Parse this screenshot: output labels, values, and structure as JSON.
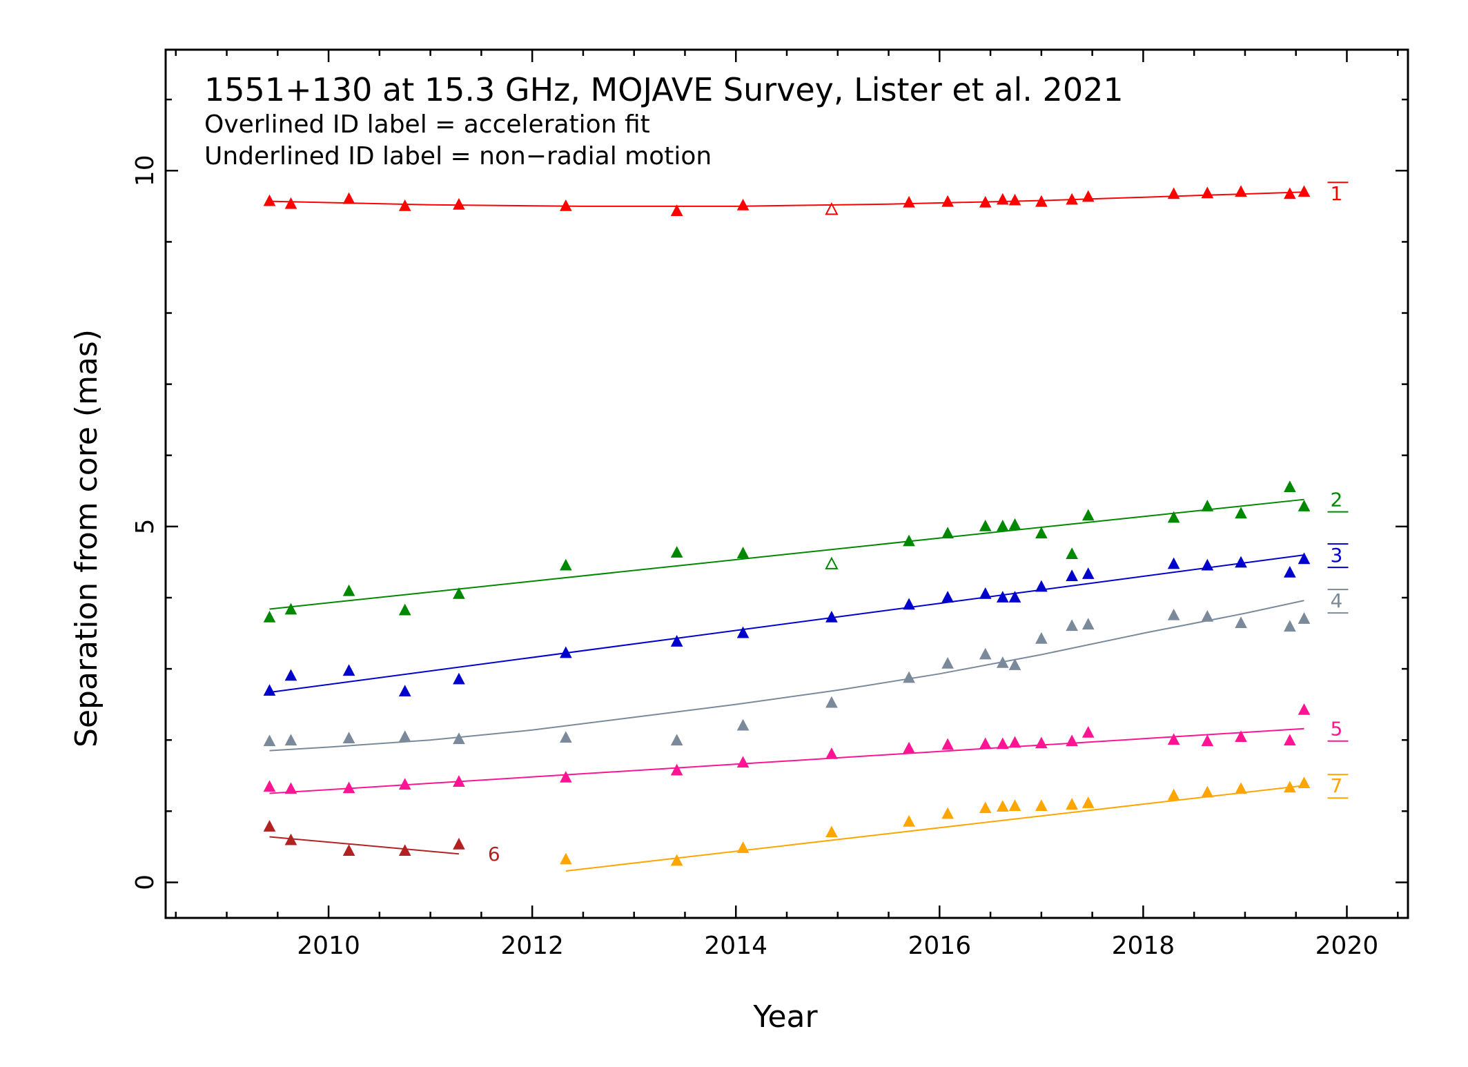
{
  "chart_data": {
    "type": "scatter",
    "title": "1551+130 at 15.3 GHz, MOJAVE Survey, Lister et al. 2021",
    "subtitle_lines": [
      "Overlined ID label = acceleration fit",
      "Underlined ID label = non−radial motion"
    ],
    "xlabel": "Year",
    "ylabel": "Separation from core (mas)",
    "xlim": [
      2008.4,
      2020.6
    ],
    "ylim": [
      -0.5,
      11.7
    ],
    "xticks": [
      2010,
      2012,
      2014,
      2016,
      2018,
      2020
    ],
    "yticks": [
      0,
      5,
      10
    ],
    "xminor_step": 0.5,
    "yminor_step": 1,
    "grid": false,
    "marker": "triangle",
    "series": [
      {
        "name": "1",
        "color": "#ff0000",
        "overline": true,
        "underline": false,
        "x": [
          2009.42,
          2009.63,
          2010.2,
          2010.75,
          2011.28,
          2012.33,
          2013.42,
          2014.07,
          2015.7,
          2016.08,
          2016.45,
          2016.62,
          2016.74,
          2017.0,
          2017.3,
          2017.46,
          2018.3,
          2018.63,
          2018.96,
          2019.44,
          2019.58
        ],
        "y": [
          9.57,
          9.53,
          9.6,
          9.5,
          9.52,
          9.5,
          9.43,
          9.51,
          9.55,
          9.56,
          9.55,
          9.59,
          9.58,
          9.56,
          9.59,
          9.63,
          9.67,
          9.68,
          9.7,
          9.67,
          9.7
        ],
        "open_x": [
          2014.94
        ],
        "open_y": [
          9.45
        ],
        "fit_x": [
          2009.42,
          2011.0,
          2012.5,
          2014.0,
          2015.5,
          2017.0,
          2018.5,
          2019.58
        ],
        "fit_y": [
          9.57,
          9.52,
          9.5,
          9.5,
          9.53,
          9.58,
          9.65,
          9.7
        ]
      },
      {
        "name": "2",
        "color": "#008800",
        "overline": false,
        "underline": true,
        "x": [
          2009.42,
          2009.63,
          2010.2,
          2010.75,
          2011.28,
          2012.33,
          2013.42,
          2014.07,
          2015.7,
          2016.08,
          2016.45,
          2016.62,
          2016.74,
          2017.0,
          2017.3,
          2017.46,
          2018.3,
          2018.63,
          2018.96,
          2019.44,
          2019.58
        ],
        "y": [
          3.72,
          3.83,
          4.09,
          3.82,
          4.05,
          4.45,
          4.63,
          4.62,
          4.79,
          4.9,
          5.0,
          5.0,
          5.02,
          4.9,
          4.61,
          5.15,
          5.12,
          5.28,
          5.18,
          5.55,
          5.28
        ],
        "open_x": [
          2014.94
        ],
        "open_y": [
          4.47
        ],
        "fit_x": [
          2009.42,
          2019.58
        ],
        "fit_y": [
          3.84,
          5.38
        ]
      },
      {
        "name": "3",
        "color": "#0000cc",
        "overline": true,
        "underline": true,
        "x": [
          2009.42,
          2009.63,
          2010.2,
          2010.75,
          2011.28,
          2012.33,
          2013.42,
          2014.07,
          2014.94,
          2015.7,
          2016.08,
          2016.45,
          2016.62,
          2016.74,
          2017.0,
          2017.3,
          2017.46,
          2018.3,
          2018.63,
          2018.96,
          2019.44,
          2019.58
        ],
        "y": [
          2.69,
          2.9,
          2.97,
          2.68,
          2.85,
          3.22,
          3.38,
          3.5,
          3.72,
          3.9,
          4.0,
          4.05,
          4.0,
          4.0,
          4.15,
          4.3,
          4.33,
          4.47,
          4.45,
          4.49,
          4.35,
          4.54
        ],
        "open_x": [],
        "open_y": [],
        "fit_x": [
          2009.42,
          2019.58
        ],
        "fit_y": [
          2.67,
          4.6
        ]
      },
      {
        "name": "4",
        "color": "#7a8a9a",
        "overline": true,
        "underline": true,
        "x": [
          2009.42,
          2009.63,
          2010.2,
          2010.75,
          2011.28,
          2012.33,
          2013.42,
          2014.07,
          2014.94,
          2015.7,
          2016.08,
          2016.45,
          2016.62,
          2016.74,
          2017.0,
          2017.3,
          2017.46,
          2018.3,
          2018.63,
          2018.96,
          2019.44,
          2019.58
        ],
        "y": [
          1.98,
          1.99,
          2.02,
          2.04,
          2.01,
          2.03,
          1.99,
          2.2,
          2.52,
          2.87,
          3.07,
          3.2,
          3.08,
          3.05,
          3.42,
          3.6,
          3.62,
          3.75,
          3.73,
          3.64,
          3.59,
          3.7
        ],
        "open_x": [],
        "open_y": [],
        "fit_x": [
          2009.42,
          2010.0,
          2011.0,
          2012.0,
          2013.0,
          2014.0,
          2015.0,
          2016.0,
          2017.0,
          2018.0,
          2019.0,
          2019.58
        ],
        "fit_y": [
          1.85,
          1.9,
          2.0,
          2.14,
          2.32,
          2.5,
          2.7,
          2.93,
          3.2,
          3.5,
          3.78,
          3.96
        ]
      },
      {
        "name": "5",
        "color": "#ff1493",
        "overline": false,
        "underline": true,
        "x": [
          2009.42,
          2009.63,
          2010.2,
          2010.75,
          2011.28,
          2012.33,
          2013.42,
          2014.07,
          2014.94,
          2015.7,
          2016.08,
          2016.45,
          2016.62,
          2016.74,
          2017.0,
          2017.3,
          2017.46,
          2018.3,
          2018.63,
          2018.96,
          2019.44,
          2019.58
        ],
        "y": [
          1.34,
          1.31,
          1.32,
          1.37,
          1.41,
          1.47,
          1.57,
          1.68,
          1.8,
          1.88,
          1.93,
          1.94,
          1.94,
          1.96,
          1.95,
          1.98,
          2.1,
          2.0,
          1.98,
          2.04,
          1.99,
          2.42
        ],
        "open_x": [],
        "open_y": [],
        "fit_x": [
          2009.42,
          2019.58
        ],
        "fit_y": [
          1.25,
          2.16
        ]
      },
      {
        "name": "6",
        "color": "#b22222",
        "overline": false,
        "underline": false,
        "x": [
          2009.42,
          2009.63,
          2010.2,
          2010.75,
          2011.28
        ],
        "y": [
          0.78,
          0.59,
          0.44,
          0.44,
          0.53
        ],
        "open_x": [],
        "open_y": [],
        "fit_x": [
          2009.42,
          2011.28
        ],
        "fit_y": [
          0.64,
          0.4
        ]
      },
      {
        "name": "7",
        "color": "#ffa500",
        "overline": true,
        "underline": true,
        "x": [
          2012.33,
          2013.42,
          2014.07,
          2014.94,
          2015.7,
          2016.08,
          2016.45,
          2016.62,
          2016.74,
          2017.0,
          2017.3,
          2017.46,
          2018.3,
          2018.63,
          2018.96,
          2019.44,
          2019.58
        ],
        "y": [
          0.32,
          0.3,
          0.48,
          0.7,
          0.85,
          0.96,
          1.04,
          1.06,
          1.07,
          1.07,
          1.09,
          1.11,
          1.22,
          1.26,
          1.31,
          1.33,
          1.39
        ],
        "open_x": [],
        "open_y": [],
        "fit_x": [
          2012.33,
          2019.58
        ],
        "fit_y": [
          0.16,
          1.36
        ]
      }
    ]
  }
}
